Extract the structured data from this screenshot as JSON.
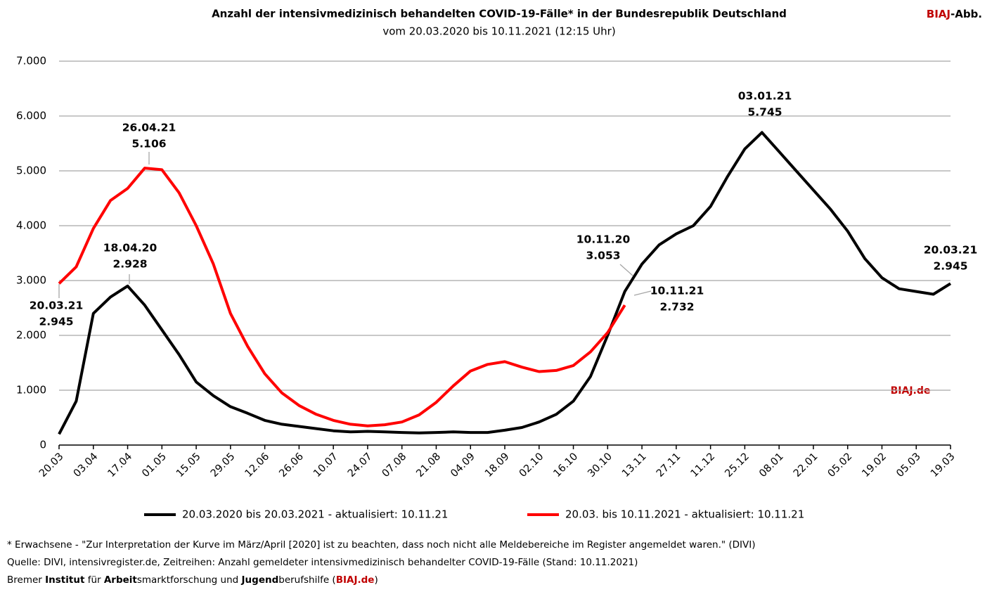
{
  "chart_data": {
    "type": "line",
    "title": "Anzahl der intensivmedizinisch behandelten COVID-19-Fälle* in der Bundesrepublik Deutschland",
    "subtitle": "vom 20.03.2020 bis 10.11.2021 (12:15 Uhr)",
    "brand": [
      "BIAJ",
      "-Abb."
    ],
    "watermark": "BIAJ.de",
    "categories": [
      "20.03",
      null,
      "03.04",
      null,
      "17.04",
      null,
      "01.05",
      null,
      "15.05",
      null,
      "29.05",
      null,
      "12.06",
      null,
      "26.06",
      null,
      "10.07",
      null,
      "24.07",
      null,
      "07.08",
      null,
      "21.08",
      null,
      "04.09",
      null,
      "18.09",
      null,
      "02.10",
      null,
      "16.10",
      null,
      "30.10",
      null,
      "13.11",
      null,
      "27.11",
      null,
      "11.12",
      null,
      "25.12",
      null,
      "08.01",
      null,
      "22.01",
      null,
      "05.02",
      null,
      "19.02",
      null,
      "05.03",
      null,
      "19.03"
    ],
    "ylim": [
      0,
      7000
    ],
    "yticks": [
      0,
      {
        "value": 1000,
        "label": "1.000"
      },
      {
        "value": 2000,
        "label": "2.000"
      },
      {
        "value": 3000,
        "label": "3.000"
      },
      {
        "value": 4000,
        "label": "4.000"
      },
      {
        "value": 5000,
        "label": "5.000"
      },
      {
        "value": 6000,
        "label": "6.000"
      },
      {
        "value": 7000,
        "label": "7.000"
      }
    ],
    "grid": true,
    "series": [
      {
        "name": "20.03.2020 bis 20.03.2021 - aktualisiert: 10.11.21",
        "color": "#000000",
        "values": [
          200,
          800,
          2400,
          2700,
          2900,
          2550,
          2100,
          1650,
          1150,
          900,
          700,
          580,
          450,
          380,
          340,
          300,
          260,
          240,
          250,
          240,
          230,
          220,
          230,
          240,
          230,
          230,
          270,
          320,
          420,
          560,
          800,
          1250,
          2000,
          2800,
          3300,
          3650,
          3850,
          4000,
          4350,
          4900,
          5400,
          5700,
          5350,
          5000,
          4650,
          4300,
          3900,
          3400,
          3050,
          2850,
          2800,
          2750,
          2945
        ]
      },
      {
        "name": "20.03. bis 10.11.2021 - aktualisiert: 10.11.21",
        "color": "#ff0000",
        "values": [
          2945,
          3250,
          3950,
          4460,
          4680,
          5050,
          5020,
          4600,
          4000,
          3300,
          2400,
          1800,
          1300,
          950,
          720,
          560,
          450,
          380,
          350,
          370,
          420,
          550,
          780,
          1080,
          1350,
          1470,
          1520,
          1420,
          1340,
          1360,
          1450,
          1700,
          2050,
          2550,
          null,
          null,
          null,
          null,
          null,
          null,
          null,
          null,
          null,
          null,
          null,
          null,
          null,
          null,
          null,
          null,
          null,
          null,
          null
        ]
      }
    ],
    "annotations": [
      [
        "18.04.20",
        "2.928"
      ],
      [
        "26.04.21",
        "5.106"
      ],
      [
        "20.03.21",
        "2.945"
      ],
      [
        "10.11.20",
        "3.053"
      ],
      [
        "10.11.21",
        "2.732"
      ],
      [
        "03.01.21",
        "5.745"
      ],
      [
        "20.03.21",
        "2.945"
      ]
    ],
    "notes": [
      "* Erwachsene - \"Zur Interpretation der Kurve im März/April [2020] ist zu beachten, dass noch nicht alle Meldebereiche im Register angemeldet waren.\" (DIVI)",
      "Quelle: DIVI, intensivregister.de, Zeitreihen: Anzahl gemeldeter intensivmedizinisch behandelter COVID-19-Fälle (Stand: 10.11.2021)",
      [
        "Bremer ",
        "Institut",
        " für ",
        "Arbeit",
        "smarktforschung und ",
        "Jugend",
        "berufshilfe (",
        "BIAJ.de",
        ")"
      ]
    ]
  }
}
